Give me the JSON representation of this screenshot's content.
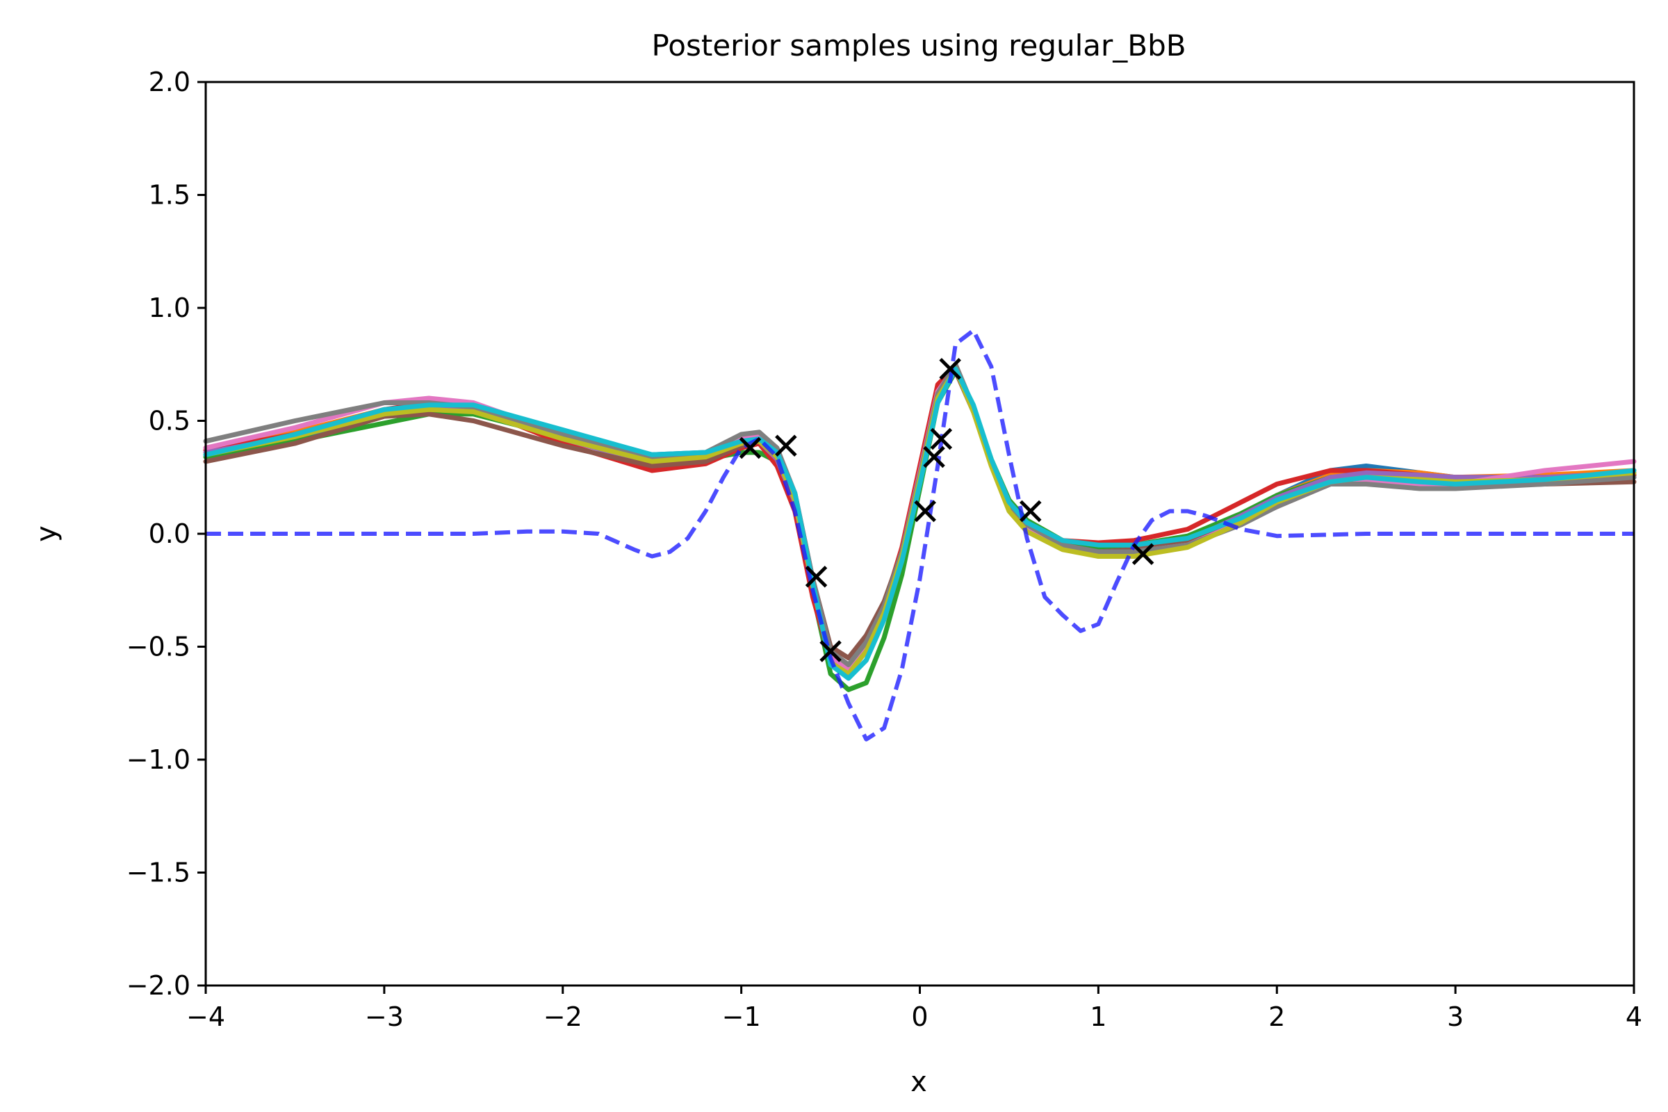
{
  "chart_data": {
    "type": "line",
    "title": "Posterior samples using regular_BbB",
    "xlabel": "x",
    "ylabel": "y",
    "xlim": [
      -4,
      4
    ],
    "ylim": [
      -2,
      2
    ],
    "grid": false,
    "xticks": [
      -4,
      -3,
      -2,
      -1,
      0,
      1,
      2,
      3,
      4
    ],
    "xtick_labels": [
      "−4",
      "−3",
      "−2",
      "−1",
      "0",
      "1",
      "2",
      "3",
      "4"
    ],
    "yticks": [
      2.0,
      1.5,
      1.0,
      0.5,
      0.0,
      -0.5,
      -1.0,
      -1.5,
      -2.0
    ],
    "ytick_labels": [
      "2.0",
      "1.5",
      "1.0",
      "0.5",
      "0.0",
      "−0.5",
      "−1.0",
      "−1.5",
      "−2.0"
    ],
    "x": [
      -4.0,
      -3.5,
      -3.0,
      -2.75,
      -2.5,
      -2.0,
      -1.5,
      -1.2,
      -1.0,
      -0.9,
      -0.8,
      -0.7,
      -0.6,
      -0.5,
      -0.4,
      -0.3,
      -0.2,
      -0.1,
      0.0,
      0.1,
      0.2,
      0.3,
      0.4,
      0.5,
      0.6,
      0.8,
      1.0,
      1.2,
      1.5,
      1.8,
      2.0,
      2.3,
      2.5,
      2.8,
      3.0,
      3.5,
      4.0
    ],
    "series": [
      {
        "color": "#1f77b4",
        "values": [
          0.35,
          0.42,
          0.52,
          0.55,
          0.55,
          0.44,
          0.35,
          0.36,
          0.42,
          0.43,
          0.36,
          0.18,
          -0.2,
          -0.55,
          -0.62,
          -0.52,
          -0.35,
          -0.1,
          0.25,
          0.6,
          0.73,
          0.55,
          0.32,
          0.14,
          0.05,
          -0.04,
          -0.07,
          -0.06,
          -0.02,
          0.08,
          0.17,
          0.28,
          0.3,
          0.27,
          0.25,
          0.24,
          0.25
        ]
      },
      {
        "color": "#ff7f0e",
        "values": [
          0.38,
          0.45,
          0.55,
          0.57,
          0.56,
          0.43,
          0.33,
          0.35,
          0.41,
          0.42,
          0.35,
          0.16,
          -0.22,
          -0.55,
          -0.6,
          -0.5,
          -0.34,
          -0.1,
          0.24,
          0.6,
          0.74,
          0.56,
          0.32,
          0.12,
          0.04,
          -0.05,
          -0.08,
          -0.07,
          -0.03,
          0.08,
          0.17,
          0.26,
          0.28,
          0.27,
          0.25,
          0.26,
          0.28
        ]
      },
      {
        "color": "#2ca02c",
        "values": [
          0.34,
          0.41,
          0.49,
          0.53,
          0.53,
          0.43,
          0.32,
          0.33,
          0.36,
          0.36,
          0.32,
          0.14,
          -0.26,
          -0.62,
          -0.69,
          -0.66,
          -0.46,
          -0.18,
          0.2,
          0.58,
          0.72,
          0.56,
          0.33,
          0.15,
          0.06,
          -0.03,
          -0.06,
          -0.05,
          -0.01,
          0.09,
          0.17,
          0.25,
          0.26,
          0.25,
          0.24,
          0.24,
          0.26
        ]
      },
      {
        "color": "#d62728",
        "values": [
          0.37,
          0.44,
          0.55,
          0.58,
          0.56,
          0.4,
          0.28,
          0.31,
          0.38,
          0.4,
          0.3,
          0.1,
          -0.28,
          -0.56,
          -0.58,
          -0.5,
          -0.32,
          -0.06,
          0.3,
          0.66,
          0.74,
          0.55,
          0.31,
          0.12,
          0.03,
          -0.03,
          -0.04,
          -0.03,
          0.02,
          0.14,
          0.22,
          0.28,
          0.28,
          0.26,
          0.25,
          0.25,
          0.26
        ]
      },
      {
        "color": "#9467bd",
        "values": [
          0.36,
          0.43,
          0.54,
          0.56,
          0.55,
          0.42,
          0.31,
          0.34,
          0.4,
          0.41,
          0.33,
          0.14,
          -0.23,
          -0.56,
          -0.6,
          -0.5,
          -0.34,
          -0.09,
          0.26,
          0.62,
          0.74,
          0.55,
          0.31,
          0.12,
          0.04,
          -0.05,
          -0.08,
          -0.07,
          -0.03,
          0.08,
          0.16,
          0.25,
          0.27,
          0.26,
          0.25,
          0.25,
          0.27
        ]
      },
      {
        "color": "#8c564b",
        "values": [
          0.32,
          0.4,
          0.52,
          0.53,
          0.5,
          0.39,
          0.3,
          0.32,
          0.39,
          0.41,
          0.34,
          0.16,
          -0.2,
          -0.5,
          -0.55,
          -0.45,
          -0.3,
          -0.08,
          0.25,
          0.6,
          0.72,
          0.54,
          0.31,
          0.13,
          0.04,
          -0.05,
          -0.08,
          -0.07,
          -0.04,
          0.05,
          0.12,
          0.22,
          0.24,
          0.22,
          0.21,
          0.22,
          0.23
        ]
      },
      {
        "color": "#e377c2",
        "values": [
          0.38,
          0.47,
          0.58,
          0.6,
          0.58,
          0.44,
          0.33,
          0.35,
          0.42,
          0.43,
          0.35,
          0.16,
          -0.22,
          -0.55,
          -0.6,
          -0.5,
          -0.33,
          -0.08,
          0.27,
          0.63,
          0.74,
          0.55,
          0.31,
          0.12,
          0.03,
          -0.06,
          -0.09,
          -0.08,
          -0.05,
          0.05,
          0.13,
          0.23,
          0.23,
          0.21,
          0.22,
          0.28,
          0.32
        ]
      },
      {
        "color": "#7f7f7f",
        "values": [
          0.41,
          0.5,
          0.58,
          0.58,
          0.56,
          0.44,
          0.34,
          0.36,
          0.44,
          0.45,
          0.38,
          0.18,
          -0.2,
          -0.52,
          -0.58,
          -0.48,
          -0.32,
          -0.08,
          0.26,
          0.62,
          0.75,
          0.56,
          0.32,
          0.13,
          0.04,
          -0.05,
          -0.08,
          -0.08,
          -0.05,
          0.04,
          0.12,
          0.22,
          0.22,
          0.2,
          0.2,
          0.22,
          0.25
        ]
      },
      {
        "color": "#bcbd22",
        "values": [
          0.35,
          0.43,
          0.53,
          0.55,
          0.54,
          0.42,
          0.32,
          0.34,
          0.4,
          0.41,
          0.34,
          0.15,
          -0.23,
          -0.57,
          -0.62,
          -0.52,
          -0.35,
          -0.1,
          0.24,
          0.6,
          0.73,
          0.54,
          0.3,
          0.1,
          0.01,
          -0.07,
          -0.1,
          -0.1,
          -0.06,
          0.05,
          0.14,
          0.23,
          0.25,
          0.24,
          0.23,
          0.24,
          0.27
        ]
      },
      {
        "color": "#17becf",
        "values": [
          0.35,
          0.44,
          0.55,
          0.57,
          0.57,
          0.46,
          0.35,
          0.36,
          0.41,
          0.42,
          0.36,
          0.18,
          -0.22,
          -0.58,
          -0.64,
          -0.56,
          -0.38,
          -0.12,
          0.22,
          0.58,
          0.73,
          0.57,
          0.33,
          0.14,
          0.05,
          -0.03,
          -0.05,
          -0.05,
          -0.02,
          0.07,
          0.15,
          0.23,
          0.25,
          0.23,
          0.22,
          0.24,
          0.28
        ]
      }
    ],
    "truth": {
      "color": "#1a1aff",
      "style": "dashed",
      "x": [
        -4.0,
        -3.0,
        -2.5,
        -2.2,
        -2.0,
        -1.8,
        -1.6,
        -1.5,
        -1.4,
        -1.3,
        -1.2,
        -1.1,
        -1.0,
        -0.9,
        -0.8,
        -0.7,
        -0.6,
        -0.5,
        -0.4,
        -0.3,
        -0.2,
        -0.1,
        0.0,
        0.1,
        0.2,
        0.3,
        0.4,
        0.5,
        0.6,
        0.7,
        0.8,
        0.9,
        1.0,
        1.1,
        1.2,
        1.3,
        1.4,
        1.5,
        1.6,
        1.8,
        2.0,
        2.5,
        3.0,
        4.0
      ],
      "values": [
        0.0,
        0.0,
        0.0,
        0.01,
        0.01,
        0.0,
        -0.07,
        -0.1,
        -0.08,
        -0.02,
        0.1,
        0.25,
        0.38,
        0.42,
        0.34,
        0.1,
        -0.25,
        -0.55,
        -0.75,
        -0.91,
        -0.86,
        -0.6,
        -0.2,
        0.3,
        0.84,
        0.9,
        0.74,
        0.35,
        -0.02,
        -0.28,
        -0.36,
        -0.43,
        -0.4,
        -0.22,
        -0.05,
        0.06,
        0.1,
        0.1,
        0.08,
        0.02,
        -0.01,
        0.0,
        0.0,
        0.0
      ]
    },
    "observations": {
      "marker": "x",
      "x": [
        -0.95,
        -0.75,
        -0.58,
        -0.5,
        0.03,
        0.08,
        0.12,
        0.17,
        0.62,
        1.25
      ],
      "y": [
        0.38,
        0.39,
        -0.19,
        -0.52,
        0.1,
        0.34,
        0.42,
        0.73,
        0.1,
        -0.09
      ]
    }
  }
}
